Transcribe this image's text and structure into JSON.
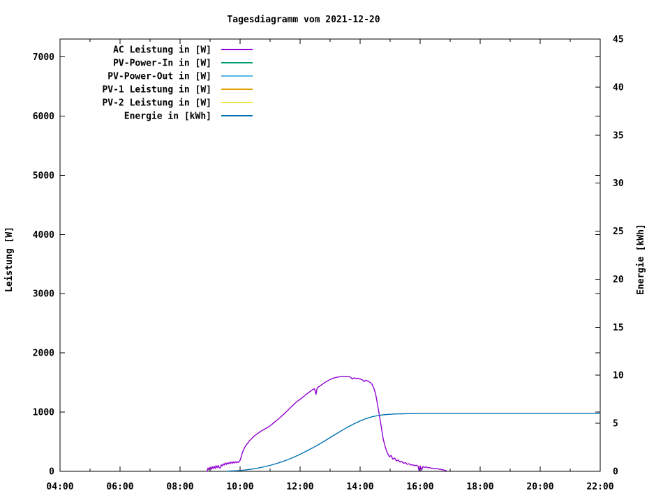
{
  "chart_data": {
    "type": "line",
    "title": "Tagesdiagramm vom 2021-12-20",
    "xlabel": "",
    "ylabel": "Leistung [W]",
    "y2label": "Energie [kWh]",
    "x_range": [
      4,
      22
    ],
    "y_range": [
      0,
      7300
    ],
    "y2_range": [
      0,
      45
    ],
    "grid": false,
    "legend_position": "top-left-inside",
    "colors": {
      "background": "#ffffff",
      "foreground": "#000000"
    },
    "x_ticks": [
      {
        "v": 4,
        "label": "04:00"
      },
      {
        "v": 6,
        "label": "06:00"
      },
      {
        "v": 8,
        "label": "08:00"
      },
      {
        "v": 10,
        "label": "10:00"
      },
      {
        "v": 12,
        "label": "12:00"
      },
      {
        "v": 14,
        "label": "14:00"
      },
      {
        "v": 16,
        "label": "16:00"
      },
      {
        "v": 18,
        "label": "18:00"
      },
      {
        "v": 20,
        "label": "20:00"
      },
      {
        "v": 22,
        "label": "22:00"
      }
    ],
    "x_minor_ticks": [
      5,
      7,
      9,
      11,
      13,
      15,
      17,
      19,
      21
    ],
    "y_ticks": [
      {
        "v": 0,
        "label": "0"
      },
      {
        "v": 1000,
        "label": "1000"
      },
      {
        "v": 2000,
        "label": "2000"
      },
      {
        "v": 3000,
        "label": "3000"
      },
      {
        "v": 4000,
        "label": "4000"
      },
      {
        "v": 5000,
        "label": "5000"
      },
      {
        "v": 6000,
        "label": "6000"
      },
      {
        "v": 7000,
        "label": "7000"
      }
    ],
    "y2_ticks": [
      {
        "v": 0,
        "label": "0"
      },
      {
        "v": 5,
        "label": "5"
      },
      {
        "v": 10,
        "label": "10"
      },
      {
        "v": 15,
        "label": "15"
      },
      {
        "v": 20,
        "label": "20"
      },
      {
        "v": 25,
        "label": "25"
      },
      {
        "v": 30,
        "label": "30"
      },
      {
        "v": 35,
        "label": "35"
      },
      {
        "v": 40,
        "label": "40"
      },
      {
        "v": 45,
        "label": "45"
      }
    ],
    "legend": [
      {
        "label": "AC Leistung in [W]",
        "color": "#9400d3"
      },
      {
        "label": "PV-Power-In in [W]",
        "color": "#009e73"
      },
      {
        "label": "PV-Power-Out in [W]",
        "color": "#56b4e9"
      },
      {
        "label": "PV-1 Leistung in [W]",
        "color": "#e69f00"
      },
      {
        "label": "PV-2 Leistung in [W]",
        "color": "#f0e442"
      },
      {
        "label": "Energie in [kWh]",
        "color": "#0072b2"
      }
    ],
    "series": [
      {
        "name": "AC Leistung in [W]",
        "color": "#9400d3",
        "axis": "left",
        "unit": "W",
        "points": [
          [
            8.9,
            0
          ],
          [
            8.93,
            55
          ],
          [
            8.96,
            25
          ],
          [
            9.0,
            70
          ],
          [
            9.04,
            35
          ],
          [
            9.07,
            80
          ],
          [
            9.1,
            45
          ],
          [
            9.14,
            85
          ],
          [
            9.17,
            50
          ],
          [
            9.2,
            95
          ],
          [
            9.24,
            60
          ],
          [
            9.27,
            100
          ],
          [
            9.3,
            65
          ],
          [
            9.34,
            55
          ],
          [
            9.37,
            110
          ],
          [
            9.4,
            90
          ],
          [
            9.44,
            125
          ],
          [
            9.47,
            105
          ],
          [
            9.5,
            140
          ],
          [
            9.54,
            115
          ],
          [
            9.57,
            145
          ],
          [
            9.6,
            125
          ],
          [
            9.64,
            150
          ],
          [
            9.67,
            130
          ],
          [
            9.7,
            155
          ],
          [
            9.74,
            135
          ],
          [
            9.77,
            160
          ],
          [
            9.8,
            140
          ],
          [
            9.84,
            160
          ],
          [
            9.87,
            145
          ],
          [
            9.9,
            165
          ],
          [
            9.94,
            150
          ],
          [
            9.97,
            170
          ],
          [
            10.0,
            185
          ],
          [
            10.04,
            250
          ],
          [
            10.08,
            320
          ],
          [
            10.12,
            370
          ],
          [
            10.16,
            410
          ],
          [
            10.2,
            440
          ],
          [
            10.26,
            480
          ],
          [
            10.32,
            520
          ],
          [
            10.38,
            550
          ],
          [
            10.44,
            580
          ],
          [
            10.5,
            605
          ],
          [
            10.56,
            630
          ],
          [
            10.62,
            650
          ],
          [
            10.68,
            672
          ],
          [
            10.74,
            690
          ],
          [
            10.8,
            708
          ],
          [
            10.86,
            725
          ],
          [
            10.92,
            742
          ],
          [
            10.98,
            760
          ],
          [
            11.04,
            785
          ],
          [
            11.1,
            810
          ],
          [
            11.16,
            835
          ],
          [
            11.22,
            860
          ],
          [
            11.28,
            885
          ],
          [
            11.34,
            912
          ],
          [
            11.4,
            940
          ],
          [
            11.46,
            968
          ],
          [
            11.52,
            996
          ],
          [
            11.58,
            1025
          ],
          [
            11.64,
            1055
          ],
          [
            11.7,
            1085
          ],
          [
            11.76,
            1115
          ],
          [
            11.82,
            1145
          ],
          [
            11.88,
            1172
          ],
          [
            11.94,
            1195
          ],
          [
            12.0,
            1215
          ],
          [
            12.06,
            1240
          ],
          [
            12.12,
            1265
          ],
          [
            12.18,
            1290
          ],
          [
            12.24,
            1312
          ],
          [
            12.3,
            1335
          ],
          [
            12.36,
            1358
          ],
          [
            12.42,
            1380
          ],
          [
            12.48,
            1395
          ],
          [
            12.53,
            1300
          ],
          [
            12.57,
            1410
          ],
          [
            12.63,
            1430
          ],
          [
            12.7,
            1455
          ],
          [
            12.77,
            1480
          ],
          [
            12.84,
            1505
          ],
          [
            12.91,
            1525
          ],
          [
            12.98,
            1545
          ],
          [
            13.05,
            1562
          ],
          [
            13.12,
            1575
          ],
          [
            13.19,
            1585
          ],
          [
            13.26,
            1592
          ],
          [
            13.33,
            1598
          ],
          [
            13.4,
            1602
          ],
          [
            13.47,
            1605
          ],
          [
            13.54,
            1598
          ],
          [
            13.61,
            1602
          ],
          [
            13.68,
            1590
          ],
          [
            13.74,
            1558
          ],
          [
            13.8,
            1578
          ],
          [
            13.87,
            1568
          ],
          [
            13.93,
            1572
          ],
          [
            14.0,
            1558
          ],
          [
            14.07,
            1548
          ],
          [
            14.13,
            1515
          ],
          [
            14.19,
            1538
          ],
          [
            14.26,
            1522
          ],
          [
            14.33,
            1505
          ],
          [
            14.4,
            1468
          ],
          [
            14.46,
            1400
          ],
          [
            14.52,
            1295
          ],
          [
            14.57,
            1160
          ],
          [
            14.62,
            1010
          ],
          [
            14.67,
            860
          ],
          [
            14.72,
            700
          ],
          [
            14.77,
            545
          ],
          [
            14.82,
            440
          ],
          [
            14.87,
            360
          ],
          [
            14.92,
            295
          ],
          [
            14.98,
            245
          ],
          [
            15.03,
            270
          ],
          [
            15.09,
            205
          ],
          [
            15.15,
            225
          ],
          [
            15.21,
            175
          ],
          [
            15.27,
            190
          ],
          [
            15.33,
            155
          ],
          [
            15.39,
            168
          ],
          [
            15.45,
            135
          ],
          [
            15.51,
            148
          ],
          [
            15.57,
            118
          ],
          [
            15.63,
            128
          ],
          [
            15.69,
            105
          ],
          [
            15.75,
            112
          ],
          [
            15.81,
            95
          ],
          [
            15.87,
            102
          ],
          [
            15.93,
            88
          ],
          [
            15.96,
            15
          ],
          [
            16.0,
            92
          ],
          [
            16.05,
            18
          ],
          [
            16.09,
            80
          ],
          [
            16.15,
            68
          ],
          [
            16.21,
            74
          ],
          [
            16.27,
            58
          ],
          [
            16.33,
            62
          ],
          [
            16.39,
            48
          ],
          [
            16.45,
            54
          ],
          [
            16.51,
            42
          ],
          [
            16.57,
            46
          ],
          [
            16.63,
            36
          ],
          [
            16.69,
            32
          ],
          [
            16.75,
            26
          ],
          [
            16.81,
            20
          ],
          [
            16.87,
            12
          ]
        ]
      },
      {
        "name": "Energie in [kWh]",
        "color": "#0072b2",
        "axis": "right",
        "unit": "kWh",
        "points": [
          [
            9.55,
            0.02
          ],
          [
            9.8,
            0.05
          ],
          [
            10.0,
            0.09
          ],
          [
            10.2,
            0.15
          ],
          [
            10.4,
            0.23
          ],
          [
            10.6,
            0.34
          ],
          [
            10.8,
            0.47
          ],
          [
            11.0,
            0.62
          ],
          [
            11.2,
            0.8
          ],
          [
            11.4,
            1.0
          ],
          [
            11.6,
            1.23
          ],
          [
            11.8,
            1.49
          ],
          [
            12.0,
            1.77
          ],
          [
            12.2,
            2.08
          ],
          [
            12.4,
            2.41
          ],
          [
            12.6,
            2.76
          ],
          [
            12.8,
            3.13
          ],
          [
            13.0,
            3.51
          ],
          [
            13.2,
            3.89
          ],
          [
            13.4,
            4.27
          ],
          [
            13.6,
            4.63
          ],
          [
            13.8,
            4.96
          ],
          [
            14.0,
            5.25
          ],
          [
            14.2,
            5.49
          ],
          [
            14.4,
            5.68
          ],
          [
            14.6,
            5.81
          ],
          [
            14.8,
            5.89
          ],
          [
            15.0,
            5.94
          ],
          [
            15.2,
            5.97
          ],
          [
            15.4,
            5.99
          ],
          [
            15.7,
            6.01
          ],
          [
            16.0,
            6.02
          ],
          [
            17.0,
            6.03
          ],
          [
            22.0,
            6.03
          ]
        ]
      }
    ]
  }
}
